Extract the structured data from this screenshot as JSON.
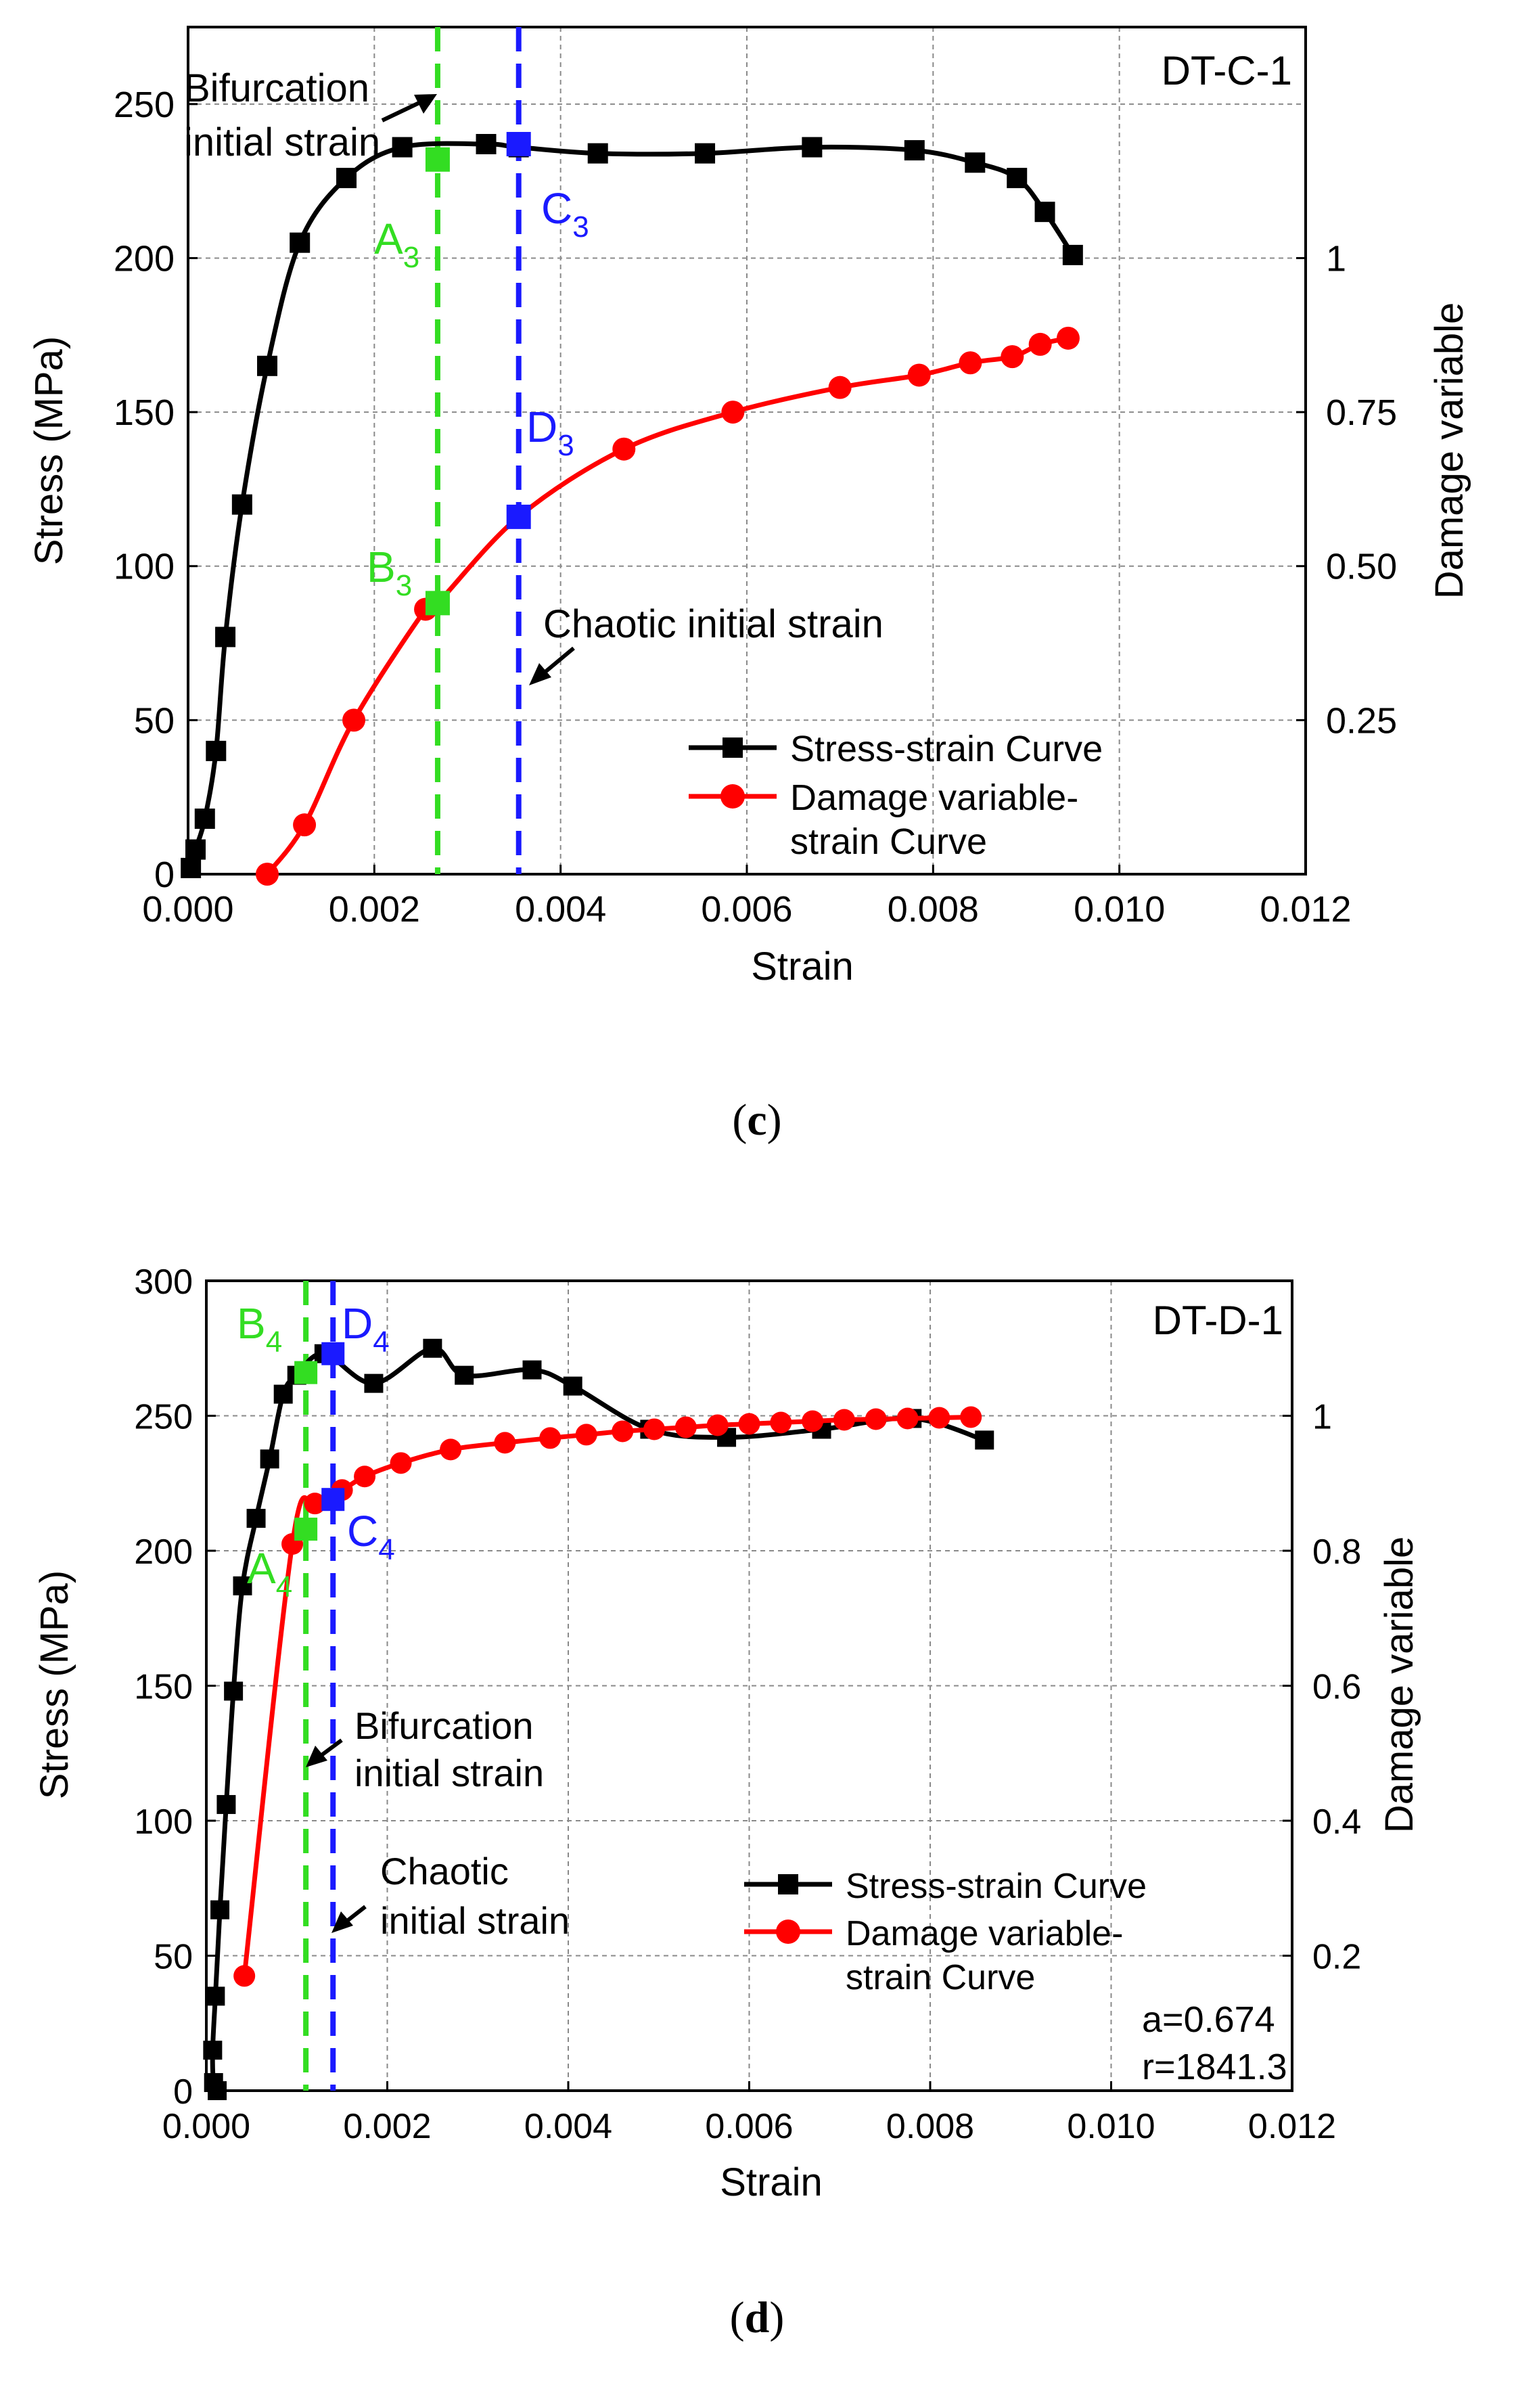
{
  "chart_data": [
    {
      "type": "line",
      "panel_id": "c",
      "caption_letter": "c",
      "title": "DT-C-1",
      "xlabel": "Strain",
      "ylabel": "Stress (MPa)",
      "y2label": "Damage variable",
      "xlim": [
        0,
        0.012
      ],
      "ylim": [
        0,
        275
      ],
      "y2lim": [
        0,
        1.375
      ],
      "x_ticks": [
        "0.000",
        "0.002",
        "0.004",
        "0.006",
        "0.008",
        "0.010",
        "0.012"
      ],
      "x_tick_values": [
        0,
        0.002,
        0.004,
        0.006,
        0.008,
        0.01,
        0.012
      ],
      "y_ticks": [
        "0",
        "50",
        "100",
        "150",
        "200",
        "250"
      ],
      "y_tick_values": [
        0,
        50,
        100,
        150,
        200,
        250
      ],
      "y2_ticks": [
        "0.25",
        "0.50",
        "0.75",
        "1"
      ],
      "y2_tick_values": [
        0.25,
        0.5,
        0.75,
        1.0
      ],
      "grid": true,
      "series": [
        {
          "name": "Stress-strain Curve",
          "axis": "left",
          "color": "#000000",
          "marker": "square",
          "x": [
            3e-05,
            8e-05,
            0.00018,
            0.0003,
            0.0004,
            0.00058,
            0.00085,
            0.0012,
            0.0017,
            0.0023,
            0.0032,
            0.00355,
            0.0044,
            0.00555,
            0.0067,
            0.0078,
            0.00845,
            0.0089,
            0.0092,
            0.0095
          ],
          "y": [
            2,
            8,
            18,
            40,
            77,
            120,
            165,
            205,
            226,
            236,
            237,
            236,
            234,
            234,
            236,
            235,
            231,
            226,
            215,
            201
          ]
        },
        {
          "name": "Damage variable-strain Curve",
          "axis": "right",
          "color": "#ff0000",
          "marker": "circle",
          "x": [
            0.00085,
            0.00125,
            0.00178,
            0.00255,
            0.00268,
            0.00355,
            0.00468,
            0.00585,
            0.007,
            0.00785,
            0.0084,
            0.00885,
            0.00915,
            0.00945
          ],
          "y": [
            0.0,
            0.08,
            0.25,
            0.43,
            0.44,
            0.58,
            0.69,
            0.75,
            0.79,
            0.81,
            0.83,
            0.84,
            0.86,
            0.87
          ]
        }
      ],
      "legend": [
        "Stress-strain Curve",
        "Damage variable-",
        "strain Curve"
      ],
      "legend_position": "lower-right",
      "markers": {
        "bifurcation_strain": 0.00268,
        "chaotic_strain": 0.00355,
        "bifurcation_color": "#33dd22",
        "chaotic_color": "#1a1aff",
        "A": {
          "base": "A",
          "sub": "3",
          "x": 0.00268,
          "y": 232
        },
        "B": {
          "base": "B",
          "sub": "3",
          "x": 0.00268,
          "y": 88
        },
        "C": {
          "base": "C",
          "sub": "3",
          "x": 0.00355,
          "y": 237
        },
        "D": {
          "base": "D",
          "sub": "3",
          "x": 0.00355,
          "y": 116
        }
      },
      "annotations": {
        "bifurcation_line1": "Bifurcation",
        "bifurcation_line2": "initial strain",
        "chaotic": "Chaotic initial strain"
      },
      "fit_params": []
    },
    {
      "type": "line",
      "panel_id": "d",
      "caption_letter": "d",
      "title": "DT-D-1",
      "xlabel": "Strain",
      "ylabel": "Stress (MPa)",
      "y2label": "Damage variable",
      "xlim": [
        0,
        0.012
      ],
      "ylim": [
        0,
        300
      ],
      "y2lim": [
        0,
        1.2
      ],
      "x_ticks": [
        "0.000",
        "0.002",
        "0.004",
        "0.006",
        "0.008",
        "0.010",
        "0.012"
      ],
      "x_tick_values": [
        0,
        0.002,
        0.004,
        0.006,
        0.008,
        0.01,
        0.012
      ],
      "y_ticks": [
        "0",
        "50",
        "100",
        "150",
        "200",
        "250",
        "300"
      ],
      "y_tick_values": [
        0,
        50,
        100,
        150,
        200,
        250,
        300
      ],
      "y2_ticks": [
        "0.2",
        "0.4",
        "0.6",
        "0.8",
        "1"
      ],
      "y2_tick_values": [
        0.2,
        0.4,
        0.6,
        0.8,
        1.0
      ],
      "grid": true,
      "series": [
        {
          "name": "Stress-strain Curve",
          "axis": "left",
          "color": "#000000",
          "marker": "square",
          "x": [
            0.00012,
            8e-05,
            7e-05,
            0.0001,
            0.00015,
            0.00022,
            0.0003,
            0.0004,
            0.00055,
            0.0007,
            0.00085,
            0.001,
            0.0013,
            0.00185,
            0.0025,
            0.00285,
            0.0036,
            0.00405,
            0.0049,
            0.00575,
            0.0068,
            0.0078,
            0.0086
          ],
          "y": [
            0,
            3,
            15,
            35,
            67,
            106,
            148,
            187,
            212,
            234,
            258,
            265,
            273,
            262,
            275,
            265,
            267,
            261,
            245,
            242,
            245,
            249,
            241
          ]
        },
        {
          "name": "Damage variable-strain Curve",
          "axis": "right",
          "color": "#ff0000",
          "marker": "circle",
          "x": [
            0.00042,
            0.00095,
            0.0012,
            0.0015,
            0.00175,
            0.00215,
            0.0027,
            0.0033,
            0.0038,
            0.0042,
            0.0046,
            0.00495,
            0.0053,
            0.00565,
            0.006,
            0.00635,
            0.0067,
            0.00705,
            0.0074,
            0.00775,
            0.0081,
            0.00845
          ],
          "y": [
            0.17,
            0.81,
            0.87,
            0.89,
            0.91,
            0.93,
            0.95,
            0.96,
            0.967,
            0.972,
            0.977,
            0.98,
            0.983,
            0.986,
            0.988,
            0.99,
            0.992,
            0.994,
            0.995,
            0.996,
            0.997,
            0.998
          ]
        }
      ],
      "legend": [
        "Stress-strain Curve",
        "Damage variable-",
        "strain Curve"
      ],
      "legend_position": "lower-right",
      "markers": {
        "bifurcation_strain": 0.0011,
        "chaotic_strain": 0.0014,
        "bifurcation_color": "#33dd22",
        "chaotic_color": "#1a1aff",
        "A": {
          "base": "A",
          "sub": "4",
          "x": 0.0011,
          "y": 208
        },
        "B": {
          "base": "B",
          "sub": "4",
          "x": 0.0011,
          "y": 266
        },
        "C": {
          "base": "C",
          "sub": "4",
          "x": 0.0014,
          "y": 219
        },
        "D": {
          "base": "D",
          "sub": "4",
          "x": 0.0014,
          "y": 273
        }
      },
      "annotations": {
        "bifurcation_line1": "Bifurcation",
        "bifurcation_line2": "initial strain",
        "chaotic_line1": "Chaotic",
        "chaotic_line2": "initial strain"
      },
      "fit_params": [
        "a=0.674",
        "r=1841.3"
      ]
    }
  ]
}
